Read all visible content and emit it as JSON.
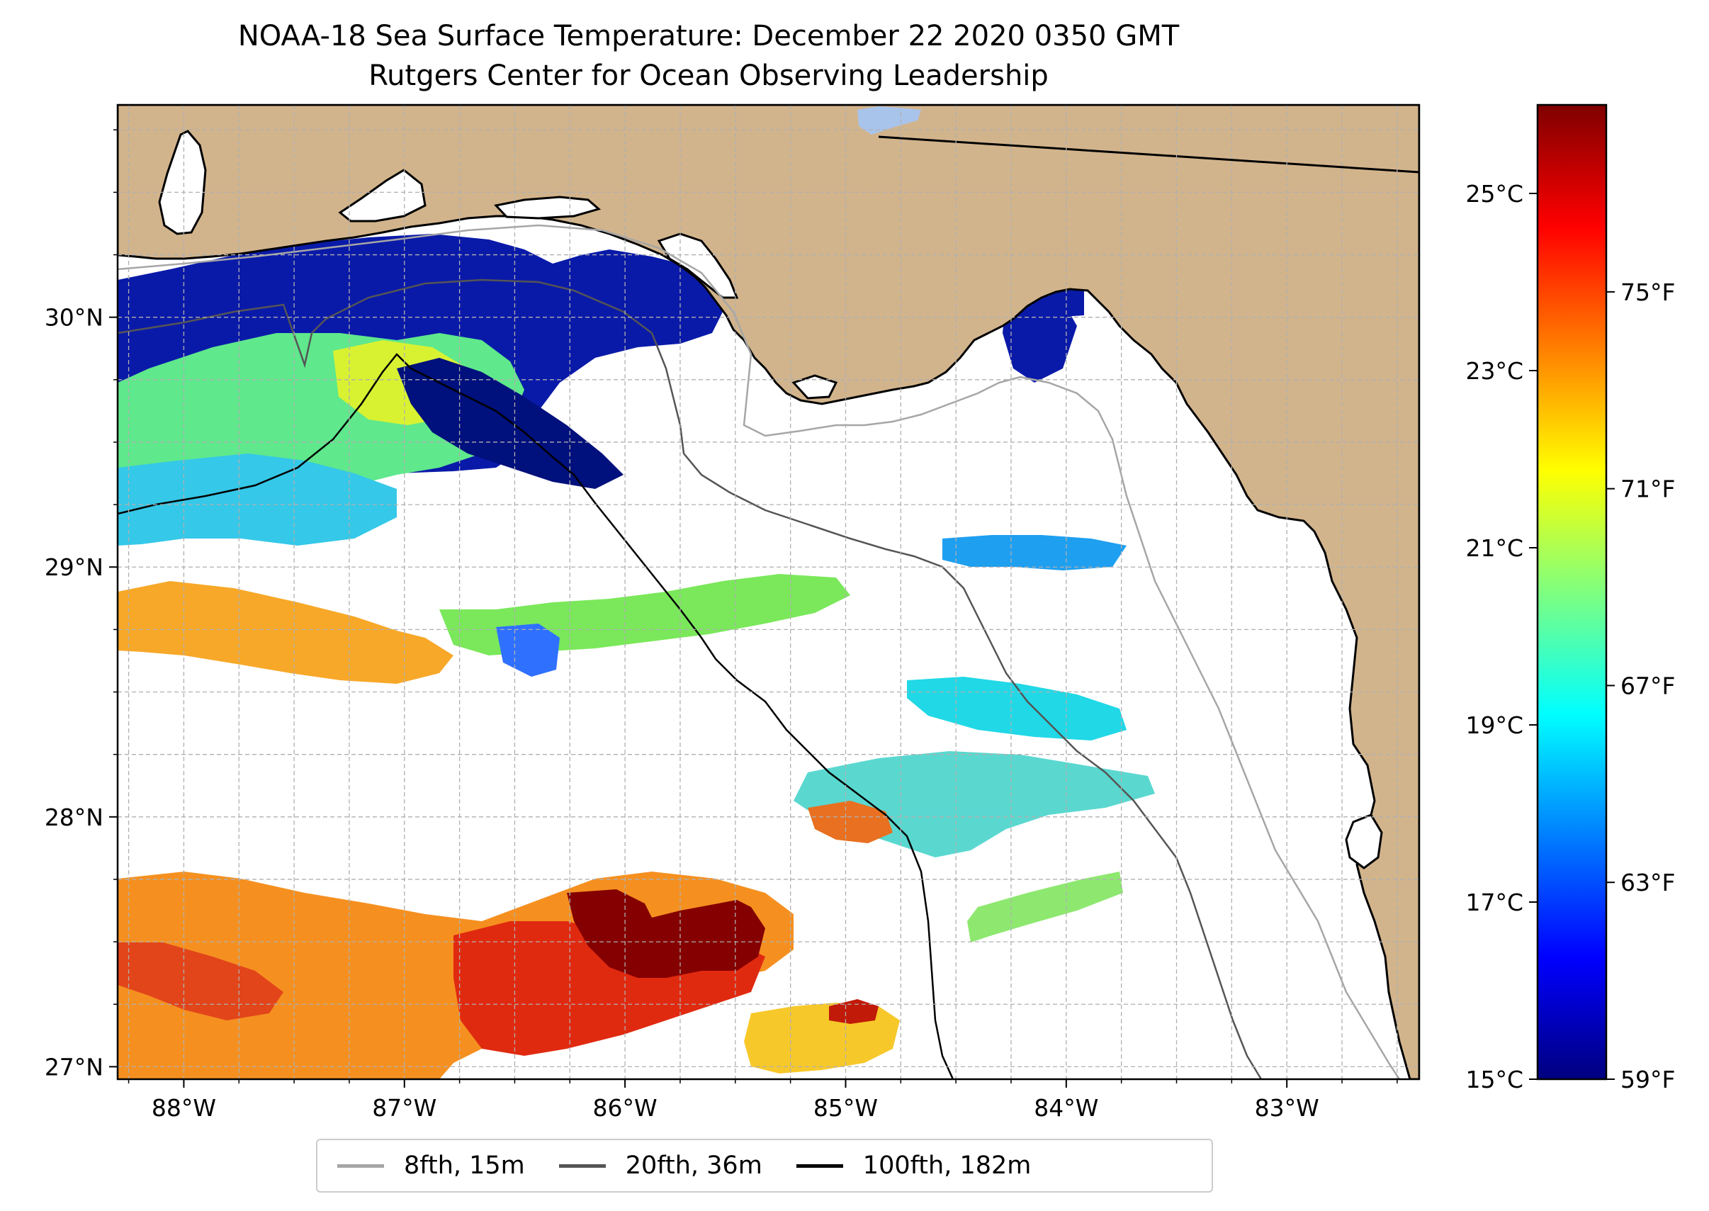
{
  "title": {
    "line1": "NOAA-18 Sea Surface Temperature: December 22 2020 0350 GMT",
    "line2": "Rutgers Center for Ocean Observing Leadership"
  },
  "map": {
    "land_color": "#D2B48C",
    "ocean_color": "#ffffff",
    "grid_color": "#b0b0b0",
    "lon_ticks": [
      "88°W",
      "87°W",
      "86°W",
      "85°W",
      "84°W",
      "83°W"
    ],
    "lat_ticks": [
      "30°N",
      "29°N",
      "28°N",
      "27°N"
    ],
    "lon_range": [
      -88.3,
      -82.4
    ],
    "lat_range": [
      26.95,
      30.85
    ]
  },
  "colorbar": {
    "celsius_ticks": [
      "25°C",
      "23°C",
      "21°C",
      "19°C",
      "17°C",
      "15°C"
    ],
    "fahrenheit_ticks": [
      "75°F",
      "71°F",
      "67°F",
      "63°F",
      "59°F"
    ],
    "range_c": [
      15,
      26
    ],
    "colormap": [
      "#00007f",
      "#0000ff",
      "#007fff",
      "#00ffff",
      "#7fff7f",
      "#ffff00",
      "#ff7f00",
      "#ff0000",
      "#7f0000"
    ]
  },
  "legend": {
    "items": [
      {
        "label": "8fth, 15m",
        "color": "#a6a6a6"
      },
      {
        "label": "20fth, 36m",
        "color": "#555555"
      },
      {
        "label": "100fth, 182m",
        "color": "#000000"
      }
    ]
  }
}
